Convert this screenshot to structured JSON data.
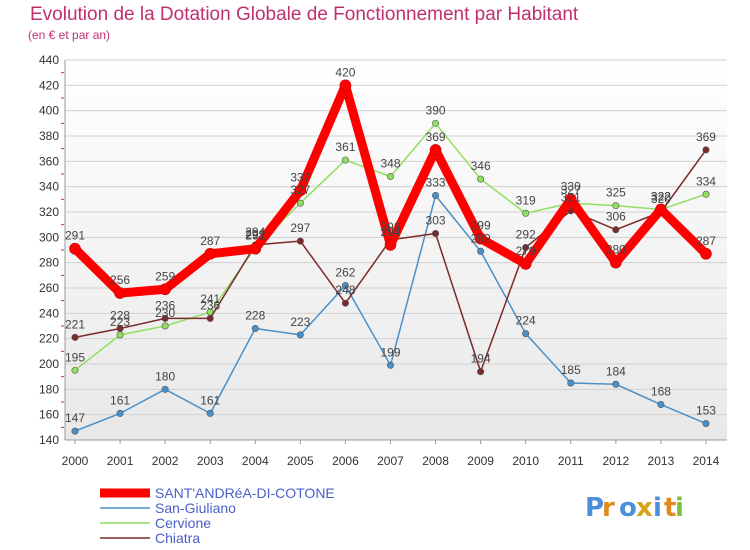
{
  "title": "Evolution de la Dotation Globale de Fonctionnement par Habitant",
  "subtitle": "(en € et par an)",
  "logo_text": "Proxiti",
  "chart_data": {
    "type": "line",
    "title": "Evolution de la Dotation Globale de Fonctionnement par Habitant",
    "subtitle": "(en € et par an)",
    "xlabel": "",
    "ylabel": "",
    "x": [
      "2000",
      "2001",
      "2002",
      "2003",
      "2004",
      "2005",
      "2006",
      "2007",
      "2008",
      "2009",
      "2010",
      "2011",
      "2012",
      "2013",
      "2014"
    ],
    "ylim": [
      140,
      440
    ],
    "yticks": [
      140,
      160,
      180,
      200,
      220,
      240,
      260,
      280,
      300,
      320,
      340,
      360,
      380,
      400,
      420,
      440
    ],
    "grid": "horizontal",
    "legend_position": "bottom-left",
    "series": [
      {
        "name": "SANT'ANDRéA-DI-COTONE",
        "color": "#ff0000",
        "values": [
          291,
          256,
          259,
          287,
          291,
          337,
          420,
          294,
          369,
          299,
          279,
          330,
          280,
          322,
          287
        ]
      },
      {
        "name": "San-Giuliano",
        "color": "#4a90c8",
        "values": [
          147,
          161,
          180,
          161,
          228,
          223,
          262,
          199,
          333,
          289,
          224,
          185,
          184,
          168,
          153
        ]
      },
      {
        "name": "Cervione",
        "color": "#90e060",
        "values": [
          195,
          223,
          230,
          241,
          292,
          327,
          361,
          348,
          390,
          346,
          319,
          327,
          325,
          322,
          334
        ]
      },
      {
        "name": "Chiatra",
        "color": "#7a2a2a",
        "values": [
          221,
          228,
          236,
          236,
          294,
          297,
          248,
          298,
          303,
          194,
          292,
          321,
          306,
          320,
          369
        ]
      }
    ]
  }
}
